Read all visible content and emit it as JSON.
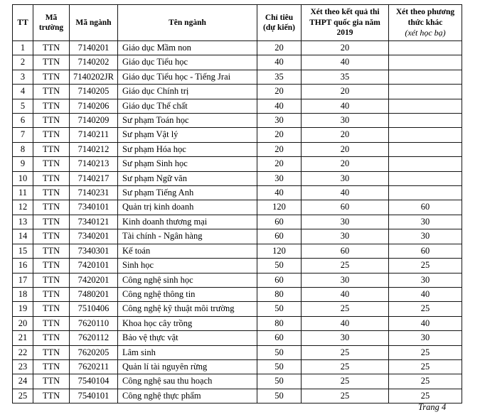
{
  "table": {
    "headers": {
      "tt": "TT",
      "ma_truong": "Mã trường",
      "ma_nganh": "Mã ngành",
      "ten_nganh": "Tên ngành",
      "chi_tieu": "Chỉ tiêu\n(dự kiến)",
      "xet_thpt": "Xét theo kết quả thi THPT quốc gia năm 2019",
      "xet_khac": "Xét theo phương thức khác",
      "xet_khac_sub": "(xét học bạ)"
    },
    "rows": [
      [
        "1",
        "TTN",
        "7140201",
        "Giáo dục Mầm non",
        "20",
        "20",
        ""
      ],
      [
        "2",
        "TTN",
        "7140202",
        "Giáo dục Tiểu học",
        "40",
        "40",
        ""
      ],
      [
        "3",
        "TTN",
        "7140202JR",
        "Giáo dục Tiểu học - Tiếng Jrai",
        "35",
        "35",
        ""
      ],
      [
        "4",
        "TTN",
        "7140205",
        "Giáo dục Chính trị",
        "20",
        "20",
        ""
      ],
      [
        "5",
        "TTN",
        "7140206",
        "Giáo dục Thể chất",
        "40",
        "40",
        ""
      ],
      [
        "6",
        "TTN",
        "7140209",
        "Sư phạm Toán học",
        "30",
        "30",
        ""
      ],
      [
        "7",
        "TTN",
        "7140211",
        "Sư phạm Vật lý",
        "20",
        "20",
        ""
      ],
      [
        "8",
        "TTN",
        "7140212",
        "Sư phạm Hóa học",
        "20",
        "20",
        ""
      ],
      [
        "9",
        "TTN",
        "7140213",
        "Sư phạm Sinh học",
        "20",
        "20",
        ""
      ],
      [
        "10",
        "TTN",
        "7140217",
        "Sư phạm Ngữ văn",
        "30",
        "30",
        ""
      ],
      [
        "11",
        "TTN",
        "7140231",
        "Sư phạm Tiếng Anh",
        "40",
        "40",
        ""
      ],
      [
        "12",
        "TTN",
        "7340101",
        "Quản trị kinh doanh",
        "120",
        "60",
        "60"
      ],
      [
        "13",
        "TTN",
        "7340121",
        "Kinh doanh thương mại",
        "60",
        "30",
        "30"
      ],
      [
        "14",
        "TTN",
        "7340201",
        "Tài chính - Ngân hàng",
        "60",
        "30",
        "30"
      ],
      [
        "15",
        "TTN",
        "7340301",
        "Kế toán",
        "120",
        "60",
        "60"
      ],
      [
        "16",
        "TTN",
        "7420101",
        "Sinh học",
        "50",
        "25",
        "25"
      ],
      [
        "17",
        "TTN",
        "7420201",
        "Công nghệ sinh học",
        "60",
        "30",
        "30"
      ],
      [
        "18",
        "TTN",
        "7480201",
        "Công nghệ thông tin",
        "80",
        "40",
        "40"
      ],
      [
        "19",
        "TTN",
        "7510406",
        "Công nghệ kỹ thuật môi trường",
        "50",
        "25",
        "25"
      ],
      [
        "20",
        "TTN",
        "7620110",
        "Khoa học cây trồng",
        "80",
        "40",
        "40"
      ],
      [
        "21",
        "TTN",
        "7620112",
        "Bảo vệ thực vật",
        "60",
        "30",
        "30"
      ],
      [
        "22",
        "TTN",
        "7620205",
        "Lâm sinh",
        "50",
        "25",
        "25"
      ],
      [
        "23",
        "TTN",
        "7620211",
        "Quản lí tài nguyên rừng",
        "50",
        "25",
        "25"
      ],
      [
        "24",
        "TTN",
        "7540104",
        "Công nghệ sau thu hoạch",
        "50",
        "25",
        "25"
      ],
      [
        "25",
        "TTN",
        "7540101",
        "Công nghệ thực phẩm",
        "50",
        "25",
        "25"
      ]
    ]
  },
  "footer": {
    "page_label": "Trang 4"
  },
  "colors": {
    "border": "#141414",
    "text": "#000000",
    "background": "#ffffff"
  }
}
